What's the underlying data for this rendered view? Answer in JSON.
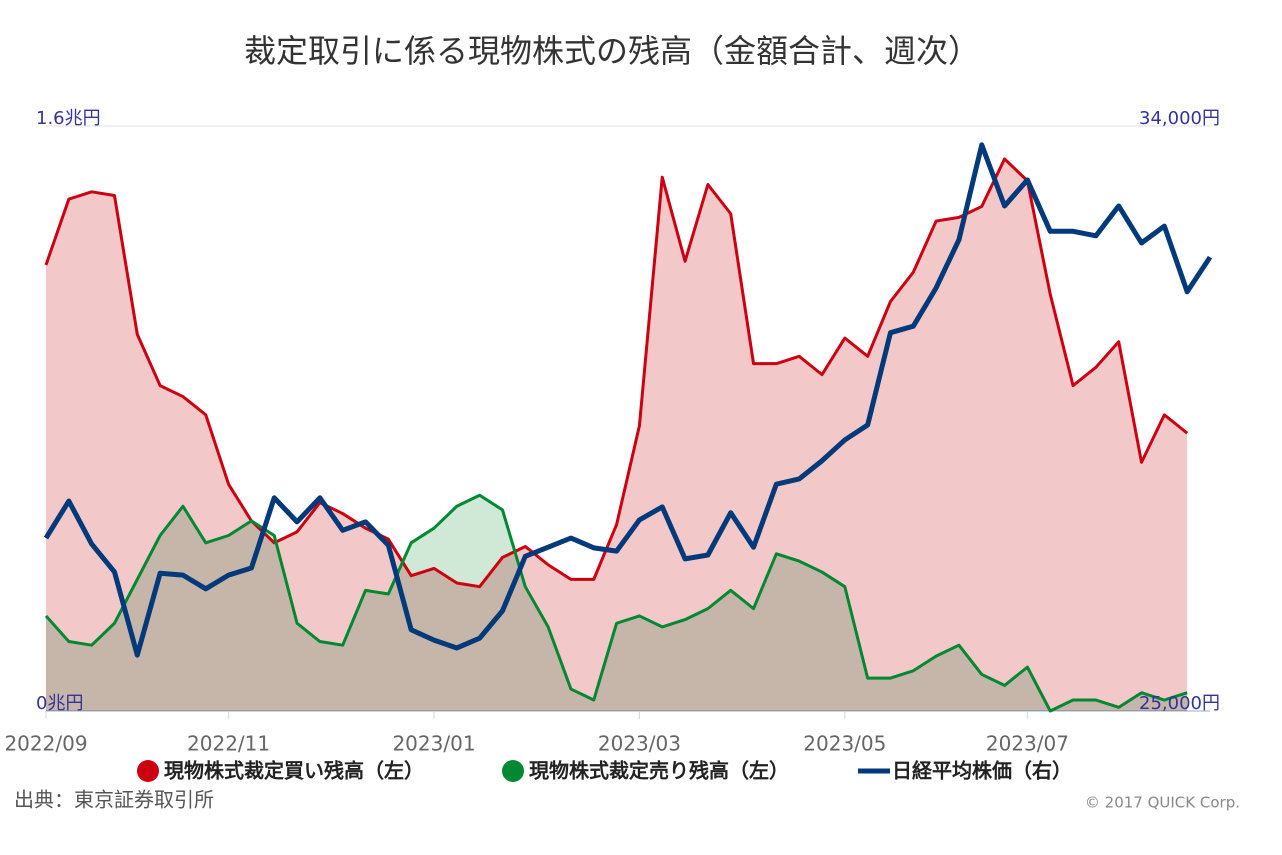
{
  "chart_data": {
    "type": "line",
    "title": "裁定取引に係る現物株式の残高（金額合計、週次）",
    "categories": [
      "2022/09",
      null,
      null,
      null,
      null,
      null,
      null,
      null,
      "2022/11",
      null,
      null,
      null,
      null,
      null,
      null,
      null,
      null,
      "2023/01",
      null,
      null,
      null,
      null,
      null,
      null,
      null,
      null,
      "2023/03",
      null,
      null,
      null,
      null,
      null,
      null,
      null,
      null,
      "2023/05",
      null,
      null,
      null,
      null,
      null,
      null,
      null,
      "2023/07",
      null,
      null,
      null,
      null,
      null,
      null,
      null,
      null
    ],
    "series": [
      {
        "name": "現物株式裁定買い残高（左）",
        "color": "#cc0011",
        "fill": "#f3c8c9",
        "values": [
          1.22,
          1.4,
          1.42,
          1.41,
          1.03,
          0.89,
          0.86,
          0.81,
          0.62,
          0.52,
          0.46,
          0.49,
          0.57,
          0.54,
          0.5,
          0.47,
          0.37,
          0.39,
          0.35,
          0.34,
          0.42,
          0.45,
          0.4,
          0.36,
          0.36,
          0.51,
          0.78,
          1.46,
          1.23,
          1.44,
          1.36,
          0.95,
          0.95,
          0.97,
          0.92,
          1.02,
          0.97,
          1.12,
          1.2,
          1.34,
          1.35,
          1.38,
          1.51,
          1.45,
          1.14,
          0.89,
          0.94,
          1.01,
          0.68,
          0.81,
          0.76,
          null
        ]
      },
      {
        "name": "現物株式裁定売り残高（左）",
        "color": "#008833",
        "fill": "#d0e8d6",
        "values": [
          0.26,
          0.19,
          0.18,
          0.24,
          0.36,
          0.48,
          0.56,
          0.46,
          0.48,
          0.52,
          0.48,
          0.24,
          0.19,
          0.18,
          0.33,
          0.32,
          0.46,
          0.5,
          0.56,
          0.59,
          0.55,
          0.34,
          0.23,
          0.06,
          0.03,
          0.24,
          0.26,
          0.23,
          0.25,
          0.28,
          0.33,
          0.28,
          0.43,
          0.41,
          0.38,
          0.34,
          0.09,
          0.09,
          0.11,
          0.15,
          0.18,
          0.1,
          0.07,
          0.12,
          0,
          0.03,
          0.03,
          0.01,
          0.05,
          0.03,
          0.05,
          null
        ]
      },
      {
        "name": "日経平均株価（右）",
        "color": "#003a7a",
        "axis": "y2",
        "values": [
          27660,
          28230,
          27570,
          27140,
          25860,
          27120,
          27090,
          26880,
          27090,
          27200,
          28280,
          27910,
          28280,
          27780,
          27910,
          27550,
          26250,
          26090,
          25970,
          26120,
          26540,
          27380,
          27520,
          27660,
          27510,
          27460,
          27940,
          28140,
          27340,
          27400,
          28050,
          27520,
          28490,
          28570,
          28850,
          29170,
          29400,
          30820,
          30920,
          31510,
          32250,
          33710,
          32770,
          33170,
          32380,
          32380,
          32310,
          32770,
          32200,
          32460,
          31450,
          31980
        ]
      }
    ],
    "ylim": [
      0,
      1.6
    ],
    "yticks": [
      {
        "value": 0,
        "label": "0兆円"
      },
      {
        "value": 1.6,
        "label": "1.6兆円"
      }
    ],
    "y2lim": [
      25000,
      34000
    ],
    "y2ticks": [
      {
        "value": 25000,
        "label": "25,000円"
      },
      {
        "value": 34000,
        "label": "34,000円"
      }
    ],
    "legend": "bottom",
    "source": "出典：東京証券取引所",
    "copyright": "© 2017 QUICK Corp."
  }
}
